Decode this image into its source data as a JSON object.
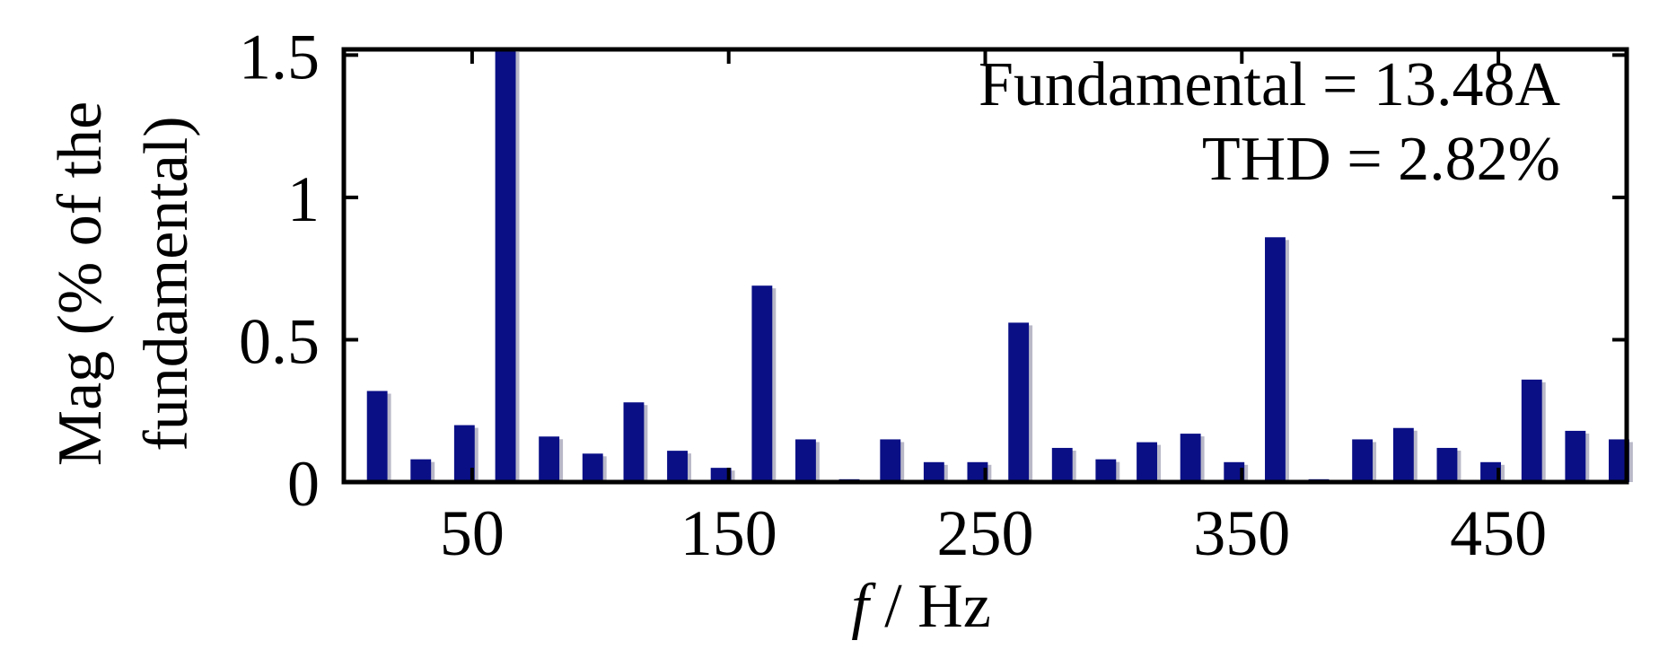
{
  "chart_data": {
    "type": "bar",
    "xlabel_italic": "f",
    "xlabel_rest": " / Hz",
    "ylabel_lines": [
      "Mag (% of the",
      "fundamental)"
    ],
    "annotations": [
      "Fundamental = 13.48A",
      "THD =  2.82%"
    ],
    "bar_color": "#0a0f86",
    "xlim": [
      0,
      500
    ],
    "ylim": [
      0,
      1.52
    ],
    "xticks": [
      50,
      150,
      250,
      350,
      450
    ],
    "yticks": [
      0,
      0.5,
      1,
      1.5
    ],
    "ytick_labels": [
      "0",
      "0.5",
      "1",
      "1.5"
    ],
    "bar_width_hz": 8,
    "bars": [
      {
        "f": 13,
        "v": 0.32
      },
      {
        "f": 30,
        "v": 0.08
      },
      {
        "f": 47,
        "v": 0.2
      },
      {
        "f": 63,
        "v": 1.52
      },
      {
        "f": 80,
        "v": 0.16
      },
      {
        "f": 97,
        "v": 0.1
      },
      {
        "f": 113,
        "v": 0.28
      },
      {
        "f": 130,
        "v": 0.11
      },
      {
        "f": 147,
        "v": 0.05
      },
      {
        "f": 163,
        "v": 0.69
      },
      {
        "f": 180,
        "v": 0.15
      },
      {
        "f": 197,
        "v": 0.01
      },
      {
        "f": 213,
        "v": 0.15
      },
      {
        "f": 230,
        "v": 0.07
      },
      {
        "f": 247,
        "v": 0.07
      },
      {
        "f": 263,
        "v": 0.56
      },
      {
        "f": 280,
        "v": 0.12
      },
      {
        "f": 297,
        "v": 0.08
      },
      {
        "f": 313,
        "v": 0.14
      },
      {
        "f": 330,
        "v": 0.17
      },
      {
        "f": 347,
        "v": 0.07
      },
      {
        "f": 363,
        "v": 0.86
      },
      {
        "f": 380,
        "v": 0.01
      },
      {
        "f": 397,
        "v": 0.15
      },
      {
        "f": 413,
        "v": 0.19
      },
      {
        "f": 430,
        "v": 0.12
      },
      {
        "f": 447,
        "v": 0.07
      },
      {
        "f": 463,
        "v": 0.36
      },
      {
        "f": 480,
        "v": 0.18
      },
      {
        "f": 497,
        "v": 0.15
      }
    ]
  }
}
